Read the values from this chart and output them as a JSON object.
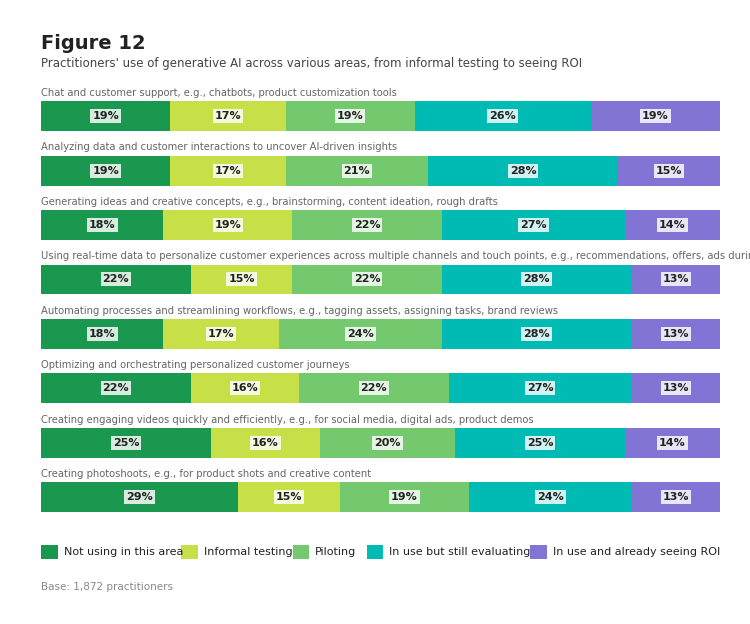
{
  "title": "Figure 12",
  "subtitle": "Practitioners' use of generative AI across various areas, from informal testing to seeing ROI",
  "base_note": "Base: 1,872 practitioners",
  "categories": [
    "Chat and customer support, e.g., chatbots, product customization tools",
    "Analyzing data and customer interactions to uncover AI-driven insights",
    "Generating ideas and creative concepts, e.g., brainstorming, content ideation, rough drafts",
    "Using real-time data to personalize customer experiences across multiple channels and touch points, e.g., recommendations, offers, ads during browsing",
    "Automating processes and streamlining workflows, e.g., tagging assets, assigning tasks, brand reviews",
    "Optimizing and orchestrating personalized customer journeys",
    "Creating engaging videos quickly and efficiently, e.g., for social media, digital ads, product demos",
    "Creating photoshoots, e.g., for product shots and creative content"
  ],
  "series_labels": [
    "Not using in this area",
    "Informal testing",
    "Piloting",
    "In use but still evaluating",
    "In use and already seeing ROI"
  ],
  "series_colors": [
    "#1a9850",
    "#c8e048",
    "#74c96e",
    "#00bab4",
    "#8274d4"
  ],
  "values": [
    [
      19,
      19,
      18,
      22,
      18,
      22,
      25,
      29
    ],
    [
      17,
      17,
      19,
      15,
      17,
      16,
      16,
      15
    ],
    [
      19,
      21,
      22,
      22,
      24,
      22,
      20,
      19
    ],
    [
      26,
      28,
      27,
      28,
      28,
      27,
      25,
      24
    ],
    [
      19,
      15,
      14,
      13,
      13,
      13,
      14,
      13
    ]
  ],
  "bar_height": 0.55,
  "label_fontsize": 8.0,
  "category_fontsize": 7.2,
  "title_fontsize": 14,
  "subtitle_fontsize": 8.5,
  "legend_fontsize": 8.0,
  "base_fontsize": 7.5,
  "background": "#ffffff",
  "border_color": "#cccccc",
  "text_color_dark": "#222222",
  "text_color_mid": "#444444",
  "text_color_light": "#888888",
  "category_color": "#666666"
}
